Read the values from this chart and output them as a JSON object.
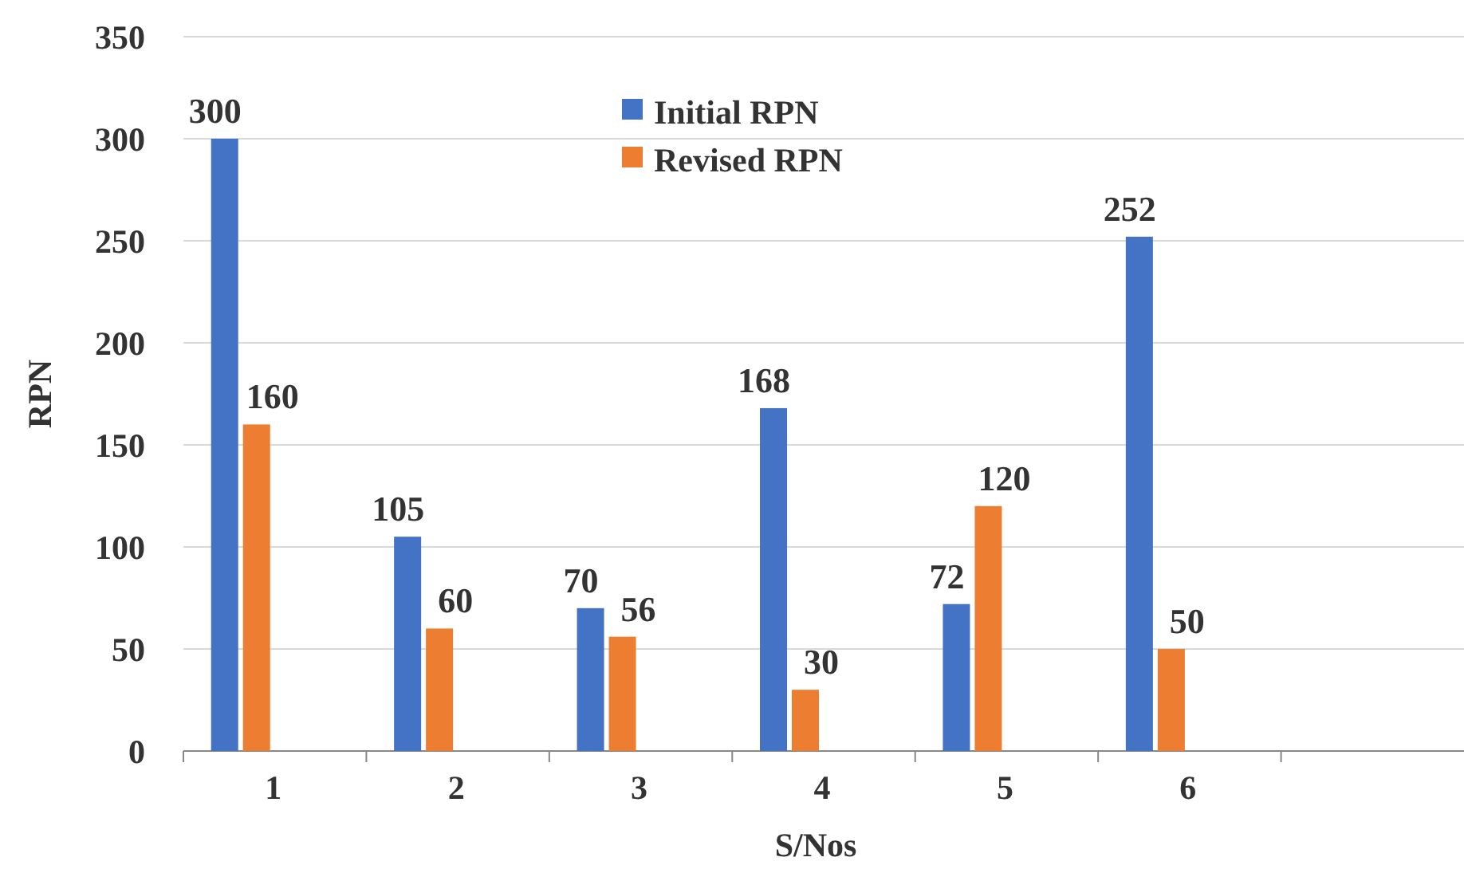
{
  "chart_data": {
    "type": "bar",
    "xlabel": "S/Nos",
    "ylabel": "RPN",
    "categories": [
      "1",
      "2",
      "3",
      "4",
      "5",
      "6",
      null
    ],
    "series": [
      {
        "name": "Initial RPN",
        "color": "#4472c4",
        "values": [
          300,
          105,
          70,
          168,
          72,
          252,
          null
        ]
      },
      {
        "name": "Revised RPN",
        "color": "#ed7d31",
        "values": [
          160,
          60,
          56,
          30,
          120,
          50,
          null
        ]
      }
    ],
    "ylim": [
      0,
      350
    ],
    "yticks": [
      0,
      50,
      100,
      150,
      200,
      250,
      300,
      350
    ],
    "grid": "y",
    "legend": "top",
    "data_labels": true
  }
}
